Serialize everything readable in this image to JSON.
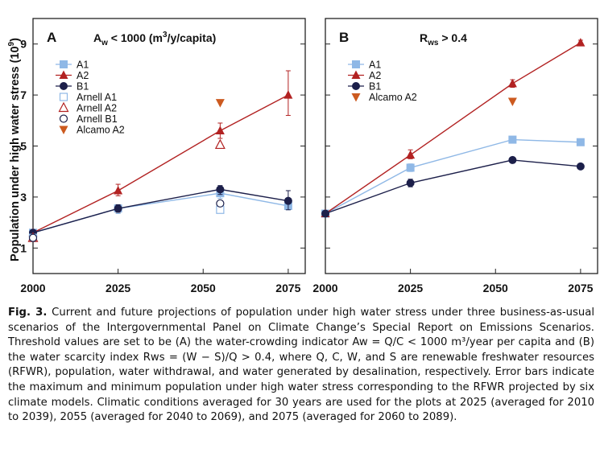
{
  "figure": {
    "ylabel_main": "Population under high water stress (",
    "ylabel_exp": "10",
    "ylabel_sup": "9",
    "ylabel_close": ")"
  },
  "caption": {
    "label": "Fig. 3.",
    "text": "Current and future projections of population under high water stress under three business-as-usual scenarios of the Intergovernmental Panel on Climate Change’s Special Report on Emissions Scenarios. Threshold values are set to be (A) the water-crowding indicator Aw = Q/C < 1000 m³/year per capita and (B) the water scarcity index Rws = (W − S)/Q > 0.4, where Q, C, W, and S are renewable freshwater resources (RFWR), population, water withdrawal, and water generated by desalination, respectively. Error bars indicate the maximum and minimum population under high water stress corresponding to the RFWR projected by six climate models. Climatic conditions averaged for 30 years are used for the plots at 2025 (averaged for 2010 to 2039), 2055 (averaged for 2040 to 2069), and 2075 (averaged for 2060 to 2089)."
  },
  "colors": {
    "A1": "#8fb8e6",
    "A2": "#b22222",
    "B1": "#1c1f4a",
    "Alcamo": "#cc5a1f",
    "frame": "#222222"
  },
  "chart_data": [
    {
      "type": "line",
      "panel_letter": "A",
      "title_prefix": "A",
      "title_sub": "w",
      "title_suffix": " < 1000 (m",
      "title_sup": "3",
      "title_end": "/y/capita)",
      "x": [
        2000,
        2025,
        2055,
        2075
      ],
      "xticks": [
        2000,
        2025,
        2050,
        2075
      ],
      "yticks": [
        1,
        3,
        5,
        7,
        9
      ],
      "xlim": [
        2000,
        2080
      ],
      "ylim": [
        0,
        10
      ],
      "series": [
        {
          "name": "A1",
          "marker": "square",
          "values": [
            1.6,
            2.55,
            3.15,
            2.65
          ],
          "err_low": [
            1.55,
            2.35,
            2.95,
            2.5
          ],
          "err_high": [
            1.65,
            2.7,
            3.35,
            2.85
          ]
        },
        {
          "name": "A2",
          "marker": "triangle",
          "values": [
            1.6,
            3.25,
            5.6,
            7.0
          ],
          "err_low": [
            1.55,
            3.05,
            5.3,
            6.2
          ],
          "err_high": [
            1.65,
            3.5,
            5.9,
            7.95
          ]
        },
        {
          "name": "B1",
          "marker": "circle",
          "values": [
            1.6,
            2.55,
            3.3,
            2.85
          ],
          "err_low": [
            1.55,
            2.4,
            3.1,
            2.5
          ],
          "err_high": [
            1.65,
            2.7,
            3.45,
            3.25
          ]
        },
        {
          "name": "Arnell A1",
          "marker": "open-square",
          "values": [
            1.4,
            null,
            2.5,
            null
          ]
        },
        {
          "name": "Arnell A2",
          "marker": "open-triangle",
          "values": [
            1.4,
            null,
            5.05,
            null
          ]
        },
        {
          "name": "Arnell B1",
          "marker": "open-circle",
          "values": [
            1.4,
            null,
            2.75,
            null
          ]
        },
        {
          "name": "Alcamo A2",
          "marker": "down-triangle",
          "values": [
            null,
            null,
            6.7,
            null
          ]
        }
      ]
    },
    {
      "type": "line",
      "panel_letter": "B",
      "title_prefix": "R",
      "title_sub": "ws",
      "title_suffix": " > 0.4",
      "title_sup": "",
      "title_end": "",
      "x": [
        2000,
        2025,
        2055,
        2075
      ],
      "xticks": [
        2000,
        2025,
        2050,
        2075
      ],
      "yticks": [
        1,
        3,
        5,
        7,
        9
      ],
      "xlim": [
        2000,
        2080
      ],
      "ylim": [
        0,
        10
      ],
      "series": [
        {
          "name": "A1",
          "marker": "square",
          "values": [
            2.35,
            4.15,
            5.25,
            5.15
          ],
          "err_low": [
            2.3,
            4.0,
            5.2,
            5.1
          ],
          "err_high": [
            2.4,
            4.3,
            5.3,
            5.2
          ]
        },
        {
          "name": "A2",
          "marker": "triangle",
          "values": [
            2.35,
            4.65,
            7.45,
            9.05
          ],
          "err_low": [
            2.3,
            4.5,
            7.3,
            8.95
          ],
          "err_high": [
            2.4,
            4.85,
            7.6,
            9.15
          ]
        },
        {
          "name": "B1",
          "marker": "circle",
          "values": [
            2.35,
            3.55,
            4.45,
            4.2
          ],
          "err_low": [
            2.3,
            3.4,
            4.4,
            4.15
          ],
          "err_high": [
            2.4,
            3.7,
            4.5,
            4.25
          ]
        },
        {
          "name": "Alcamo A2",
          "marker": "down-triangle",
          "values": [
            null,
            null,
            6.75,
            null
          ]
        }
      ]
    }
  ]
}
